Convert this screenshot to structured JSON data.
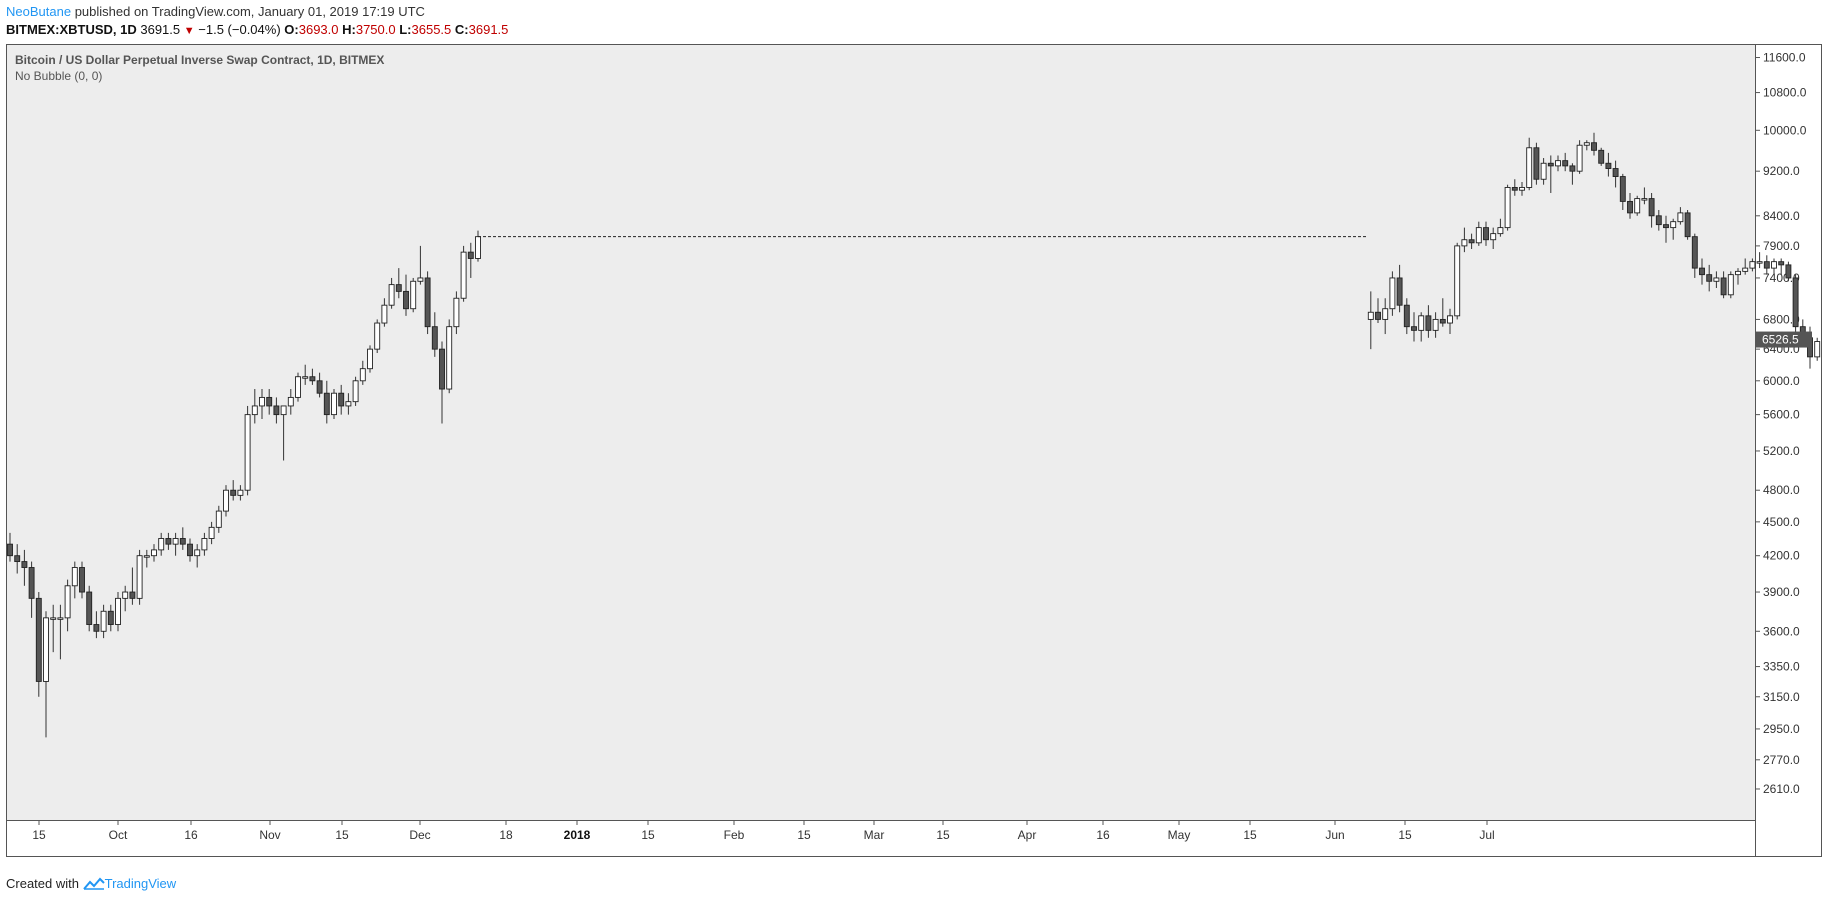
{
  "header": {
    "author": "NeoButane",
    "published_text": "published on TradingView.com, January 01, 2019 17:19 UTC"
  },
  "quote": {
    "symbol_timeframe": "BITMEX:XBTUSD, 1D",
    "last": "3691.5",
    "change": "−1.5 (−0.04%)",
    "o_label": "O:",
    "o_value": "3693.0",
    "h_label": "H:",
    "h_value": "3750.0",
    "l_label": "L:",
    "l_value": "3655.5",
    "c_label": "C:",
    "c_value": "3691.5"
  },
  "footer": {
    "created_with": "Created with",
    "brand": "TradingView"
  },
  "chart_data": {
    "type": "candlestick",
    "title": "Bitcoin / US Dollar Perpetual Inverse Swap Contract, 1D, BITMEX",
    "indicator": "No Bubble (0, 0)",
    "y_scale": "log",
    "ylim": [
      2450,
      11900
    ],
    "y_ticks": [
      "11600.0",
      "10800.0",
      "10000.0",
      "9200.0",
      "8400.0",
      "7900.0",
      "7400.0",
      "6800.0",
      "6400.0",
      "6000.0",
      "5600.0",
      "5200.0",
      "4800.0",
      "4500.0",
      "4200.0",
      "3900.0",
      "3600.0",
      "3350.0",
      "3150.0",
      "2950.0",
      "2770.0",
      "2610.0"
    ],
    "x_ticks": [
      "15",
      "Oct",
      "16",
      "Nov",
      "15",
      "Dec",
      "18",
      "2018",
      "15",
      "Feb",
      "15",
      "Mar",
      "15",
      "Apr",
      "16",
      "May",
      "15",
      "Jun",
      "15",
      "Jul"
    ],
    "x_bold_tick": "2018",
    "price_label": "6526.5",
    "hline_level": 8050,
    "colors": {
      "plot_bg": "#ededed",
      "up_body": "#ffffff",
      "down_body": "#555555",
      "wick": "#333333",
      "price_label_bg": "#555555"
    },
    "segments": [
      {
        "name": "2017",
        "start_day": 0,
        "candles": [
          [
            4300,
            4400,
            4150,
            4200
          ],
          [
            4200,
            4300,
            4050,
            4150
          ],
          [
            4150,
            4250,
            3950,
            4100
          ],
          [
            4100,
            4150,
            3700,
            3850
          ],
          [
            3850,
            3900,
            3150,
            3250
          ],
          [
            3250,
            3750,
            2900,
            3700
          ],
          [
            3700,
            3800,
            3450,
            3700
          ],
          [
            3700,
            3800,
            3400,
            3700
          ],
          [
            3700,
            4000,
            3600,
            3950
          ],
          [
            3950,
            4150,
            3850,
            4100
          ],
          [
            4100,
            4150,
            3850,
            3900
          ],
          [
            3900,
            3950,
            3600,
            3650
          ],
          [
            3650,
            3750,
            3550,
            3600
          ],
          [
            3600,
            3800,
            3550,
            3750
          ],
          [
            3750,
            3800,
            3600,
            3650
          ],
          [
            3650,
            3900,
            3600,
            3850
          ],
          [
            3850,
            3950,
            3750,
            3900
          ],
          [
            3900,
            4100,
            3800,
            3850
          ],
          [
            3850,
            4250,
            3800,
            4200
          ],
          [
            4200,
            4250,
            4100,
            4200
          ],
          [
            4200,
            4300,
            4150,
            4250
          ],
          [
            4250,
            4400,
            4200,
            4350
          ],
          [
            4350,
            4400,
            4250,
            4300
          ],
          [
            4300,
            4400,
            4200,
            4350
          ],
          [
            4350,
            4450,
            4250,
            4300
          ],
          [
            4300,
            4350,
            4150,
            4200
          ],
          [
            4200,
            4300,
            4100,
            4250
          ],
          [
            4250,
            4400,
            4200,
            4350
          ],
          [
            4350,
            4500,
            4300,
            4450
          ],
          [
            4450,
            4650,
            4400,
            4600
          ],
          [
            4600,
            4850,
            4550,
            4800
          ],
          [
            4800,
            4900,
            4700,
            4750
          ],
          [
            4750,
            4850,
            4700,
            4800
          ],
          [
            4800,
            5700,
            4750,
            5600
          ],
          [
            5600,
            5900,
            5500,
            5700
          ],
          [
            5700,
            5900,
            5550,
            5800
          ],
          [
            5800,
            5900,
            5600,
            5700
          ],
          [
            5700,
            5800,
            5500,
            5600
          ],
          [
            5600,
            5700,
            5100,
            5700
          ],
          [
            5700,
            5900,
            5600,
            5800
          ],
          [
            5800,
            6100,
            5750,
            6050
          ],
          [
            6050,
            6200,
            5950,
            6050
          ],
          [
            6050,
            6150,
            5950,
            6000
          ],
          [
            6000,
            6100,
            5800,
            5850
          ],
          [
            5850,
            6000,
            5500,
            5600
          ],
          [
            5600,
            5900,
            5550,
            5850
          ],
          [
            5850,
            5950,
            5600,
            5700
          ],
          [
            5700,
            5850,
            5600,
            5750
          ],
          [
            5750,
            6050,
            5700,
            6000
          ],
          [
            6000,
            6250,
            5950,
            6150
          ],
          [
            6150,
            6450,
            6100,
            6400
          ],
          [
            6400,
            6800,
            6350,
            6750
          ],
          [
            6750,
            7100,
            6700,
            7000
          ],
          [
            7000,
            7400,
            6950,
            7300
          ],
          [
            7300,
            7550,
            7100,
            7200
          ],
          [
            7200,
            7450,
            6850,
            6950
          ],
          [
            6950,
            7400,
            6900,
            7350
          ],
          [
            7350,
            7900,
            7300,
            7400
          ],
          [
            7400,
            7500,
            6600,
            6700
          ],
          [
            6700,
            6900,
            6300,
            6400
          ],
          [
            6400,
            6500,
            5500,
            5900
          ],
          [
            5900,
            6800,
            5850,
            6700
          ],
          [
            6700,
            7200,
            6600,
            7100
          ],
          [
            7100,
            7900,
            7050,
            7800
          ],
          [
            7800,
            7950,
            7400,
            7700
          ],
          [
            7700,
            8150,
            7650,
            8050
          ]
        ]
      },
      {
        "name": "2018",
        "start_day": 189,
        "candles": [
          [
            6800,
            7200,
            6400,
            6900
          ],
          [
            6900,
            7100,
            6750,
            6800
          ],
          [
            6800,
            7100,
            6600,
            6950
          ],
          [
            6950,
            7500,
            6850,
            7400
          ],
          [
            7400,
            7600,
            6900,
            7000
          ],
          [
            7000,
            7100,
            6600,
            6700
          ],
          [
            6700,
            6900,
            6500,
            6650
          ],
          [
            6650,
            6900,
            6500,
            6850
          ],
          [
            6850,
            7000,
            6550,
            6650
          ],
          [
            6650,
            6900,
            6550,
            6800
          ],
          [
            6800,
            7100,
            6700,
            6750
          ],
          [
            6750,
            6950,
            6600,
            6850
          ],
          [
            6850,
            7950,
            6800,
            7900
          ],
          [
            7900,
            8200,
            7800,
            8000
          ],
          [
            8000,
            8100,
            7850,
            7950
          ],
          [
            7950,
            8300,
            7900,
            8200
          ],
          [
            8200,
            8300,
            7900,
            8000
          ],
          [
            8000,
            8200,
            7850,
            8100
          ],
          [
            8100,
            8350,
            8050,
            8200
          ],
          [
            8200,
            8950,
            8150,
            8900
          ],
          [
            8900,
            9050,
            8750,
            8850
          ],
          [
            8850,
            9000,
            8750,
            8900
          ],
          [
            8900,
            9850,
            8850,
            9650
          ],
          [
            9650,
            9750,
            8950,
            9050
          ],
          [
            9050,
            9450,
            8950,
            9350
          ],
          [
            9350,
            9500,
            8800,
            9300
          ],
          [
            9300,
            9500,
            9200,
            9400
          ],
          [
            9400,
            9550,
            9200,
            9300
          ],
          [
            9300,
            9350,
            8950,
            9200
          ],
          [
            9200,
            9800,
            9150,
            9700
          ],
          [
            9700,
            9800,
            9600,
            9750
          ],
          [
            9750,
            9950,
            9500,
            9600
          ],
          [
            9600,
            9650,
            9300,
            9350
          ],
          [
            9350,
            9550,
            9100,
            9250
          ],
          [
            9250,
            9400,
            8900,
            9100
          ],
          [
            9100,
            9150,
            8500,
            8650
          ],
          [
            8650,
            8800,
            8350,
            8450
          ],
          [
            8450,
            8750,
            8400,
            8700
          ],
          [
            8700,
            8900,
            8600,
            8700
          ],
          [
            8700,
            8800,
            8200,
            8400
          ],
          [
            8400,
            8500,
            8150,
            8250
          ],
          [
            8250,
            8400,
            7950,
            8200
          ],
          [
            8200,
            8350,
            8000,
            8300
          ],
          [
            8300,
            8550,
            8250,
            8450
          ],
          [
            8450,
            8500,
            8000,
            8050
          ],
          [
            8050,
            8100,
            7400,
            7550
          ],
          [
            7550,
            7700,
            7300,
            7450
          ],
          [
            7450,
            7600,
            7200,
            7350
          ],
          [
            7350,
            7500,
            7250,
            7400
          ],
          [
            7400,
            7500,
            7100,
            7150
          ],
          [
            7150,
            7500,
            7100,
            7450
          ],
          [
            7450,
            7550,
            7300,
            7500
          ],
          [
            7500,
            7700,
            7450,
            7550
          ],
          [
            7550,
            7700,
            7500,
            7650
          ],
          [
            7650,
            7800,
            7550,
            7650
          ],
          [
            7650,
            7750,
            7450,
            7550
          ],
          [
            7550,
            7700,
            7450,
            7650
          ],
          [
            7650,
            7700,
            7450,
            7600
          ],
          [
            7600,
            7650,
            7350,
            7400
          ],
          [
            7400,
            7450,
            6600,
            6700
          ],
          [
            6700,
            6800,
            6450,
            6550
          ],
          [
            6550,
            6700,
            6150,
            6300
          ],
          [
            6300,
            6550,
            6250,
            6500
          ],
          [
            6500,
            6600,
            6250,
            6350
          ],
          [
            6350,
            6550,
            6300,
            6500
          ],
          [
            6500,
            6750,
            6450,
            6700
          ],
          [
            6700,
            6800,
            6600,
            6700
          ],
          [
            6700,
            6800,
            6600,
            6700
          ],
          [
            6700,
            6750,
            6000,
            6050
          ],
          [
            6050,
            6300,
            6000,
            6250
          ],
          [
            6250,
            6350,
            5800,
            6150
          ],
          [
            6150,
            6300,
            6050,
            6250
          ],
          [
            6250,
            6300,
            6050,
            6150
          ],
          [
            6150,
            6250,
            6050,
            6150
          ],
          [
            6150,
            6200,
            5850,
            5900
          ],
          [
            5900,
            6250,
            5850,
            6200
          ],
          [
            6200,
            6450,
            6150,
            6400
          ],
          [
            6400,
            6550,
            6350,
            6500
          ],
          [
            6500,
            6700,
            6400,
            6600
          ],
          [
            6600,
            6700,
            6450,
            6550
          ],
          [
            6550,
            6750,
            6500,
            6600
          ],
          [
            6600,
            6650,
            6500,
            6550
          ]
        ]
      }
    ]
  }
}
